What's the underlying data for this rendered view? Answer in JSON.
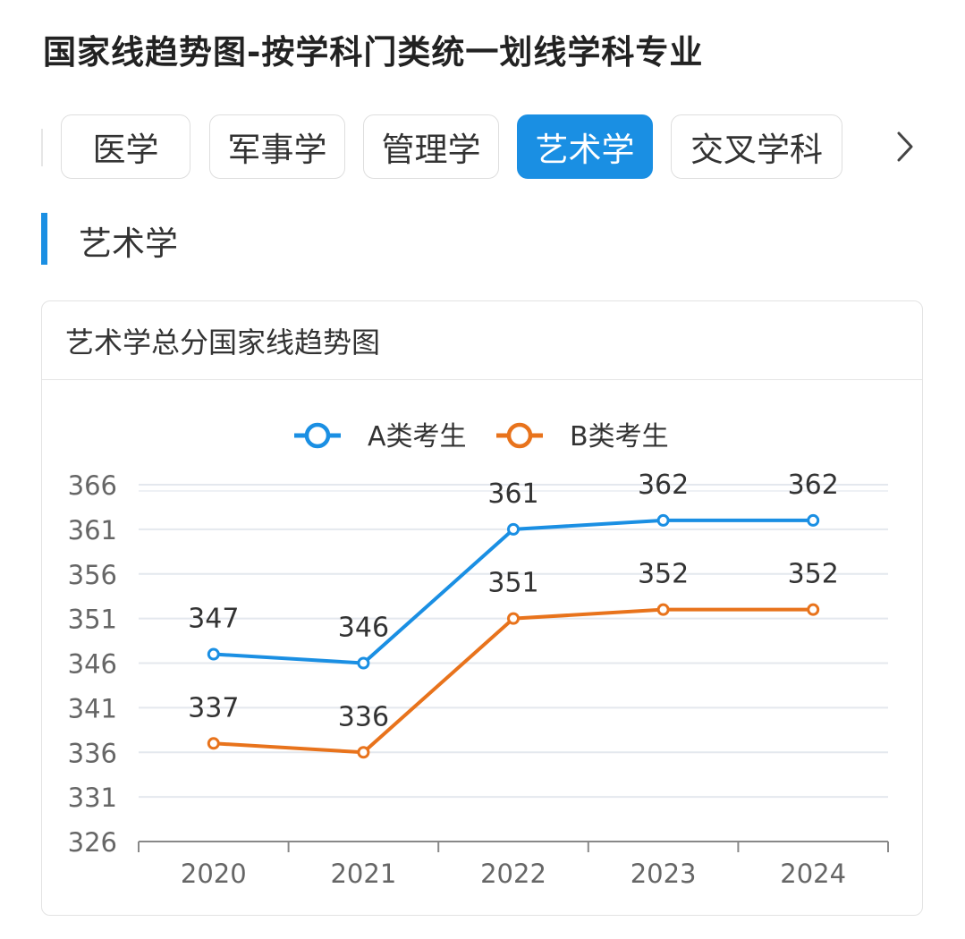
{
  "page": {
    "title": "国家线趋势图-按学科门类统一划线学科专业"
  },
  "tabs": {
    "items": [
      {
        "label": "医学",
        "active": false
      },
      {
        "label": "军事学",
        "active": false
      },
      {
        "label": "管理学",
        "active": false
      },
      {
        "label": "艺术学",
        "active": true
      },
      {
        "label": "交叉学科",
        "active": false
      }
    ],
    "next_icon": "chevron-right-icon"
  },
  "section": {
    "title": "艺术学"
  },
  "card": {
    "title": "艺术学总分国家线趋势图"
  },
  "colors": {
    "accent": "#1a8fe3",
    "series_a": "#1a8fe3",
    "series_b": "#e8731c",
    "grid": "#e4e8ee",
    "axis": "#888888"
  },
  "chart_data": {
    "type": "line",
    "title": "",
    "xlabel": "",
    "ylabel": "",
    "categories": [
      "2020",
      "2021",
      "2022",
      "2023",
      "2024"
    ],
    "ylim": [
      326,
      366
    ],
    "yticks": [
      326,
      331,
      336,
      341,
      346,
      351,
      356,
      361,
      366
    ],
    "grid": true,
    "legend_position": "top-center",
    "series": [
      {
        "name": "A类考生",
        "color": "#1a8fe3",
        "values": [
          347,
          346,
          361,
          362,
          362
        ]
      },
      {
        "name": "B类考生",
        "color": "#e8731c",
        "values": [
          337,
          336,
          351,
          352,
          352
        ]
      }
    ]
  }
}
